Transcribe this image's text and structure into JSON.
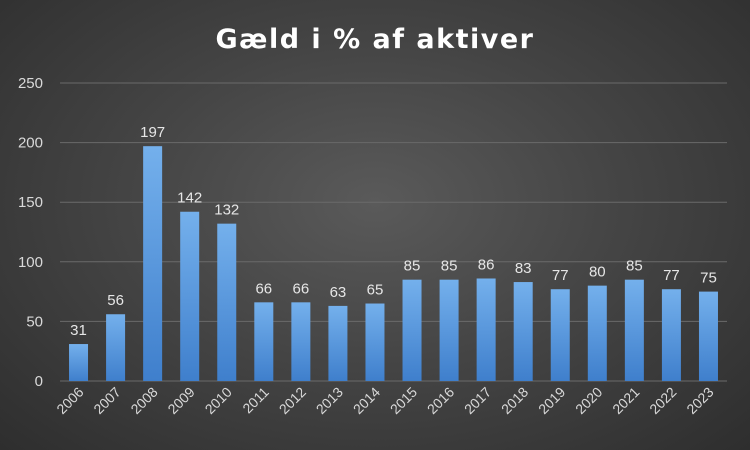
{
  "chart_data": {
    "type": "bar",
    "title": "Gæld i % af aktiver",
    "xlabel": "",
    "ylabel": "",
    "categories": [
      "2006",
      "2007",
      "2008",
      "2009",
      "2010",
      "2011",
      "2012",
      "2013",
      "2014",
      "2015",
      "2016",
      "2017",
      "2018",
      "2019",
      "2020",
      "2021",
      "2022",
      "2023"
    ],
    "values": [
      31,
      56,
      197,
      142,
      132,
      66,
      66,
      63,
      65,
      85,
      85,
      86,
      83,
      77,
      80,
      85,
      77,
      75
    ],
    "ylim": [
      0,
      250
    ],
    "yticks": [
      0,
      50,
      100,
      150,
      200,
      250
    ],
    "grid": true,
    "data_labels": true,
    "colors": {
      "bar_top": "#74b0ec",
      "bar_bottom": "#3f7fcc"
    }
  }
}
